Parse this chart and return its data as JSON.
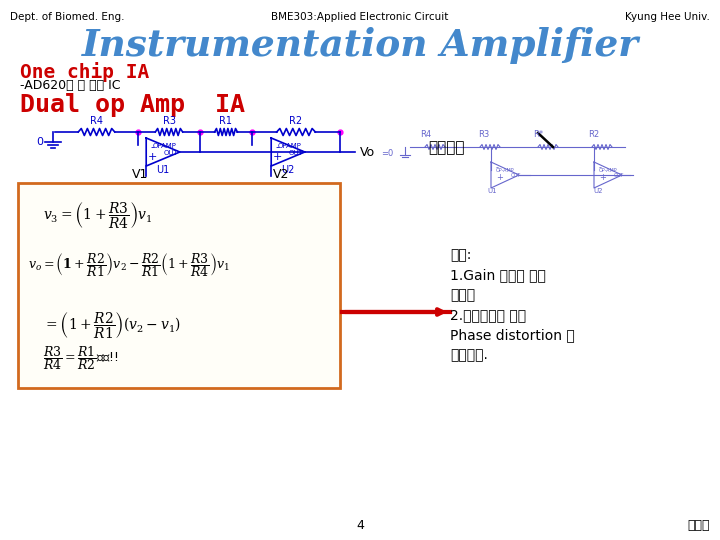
{
  "header_left": "Dept. of Biomed. Eng.",
  "header_center": "BME303:Applied Electronic Circuit",
  "header_right": "Kyung Hee Univ.",
  "title": "Instrumentation Amplifier",
  "section_title": "One chip IA",
  "subtitle": "-AD620과 그 계열 IC",
  "section2_title": "Dual op Amp  IA",
  "vo_label": "Vo",
  "lowpass_label": "저주파용",
  "v1_label": "V1",
  "v2_label": "V2",
  "u1_label": "U1",
  "u2_label": "U2",
  "opamp1_label": "OPAMP",
  "opamp2_label": "OPAMP",
  "disadvantage_title": "단점:",
  "disadvantage1": "1.Gain 바꾸는 것이",
  "disadvantage2": "어렵다",
  "disadvantage3": "2.통과시간이 달라",
  "disadvantage4": "Phase distortion 이",
  "disadvantage5": "발생한다.",
  "page_num": "4",
  "author": "변철민",
  "bg_color": "#ffffff",
  "header_color": "#000000",
  "section_title_color": "#CC0000",
  "section2_title_color": "#CC0000",
  "circuit_color": "#0000CC",
  "formula_box_color": "#D2691E",
  "red_arrow_color": "#CC0000",
  "small_circuit_color": "#6666CC",
  "junction_color": "#FF00FF"
}
